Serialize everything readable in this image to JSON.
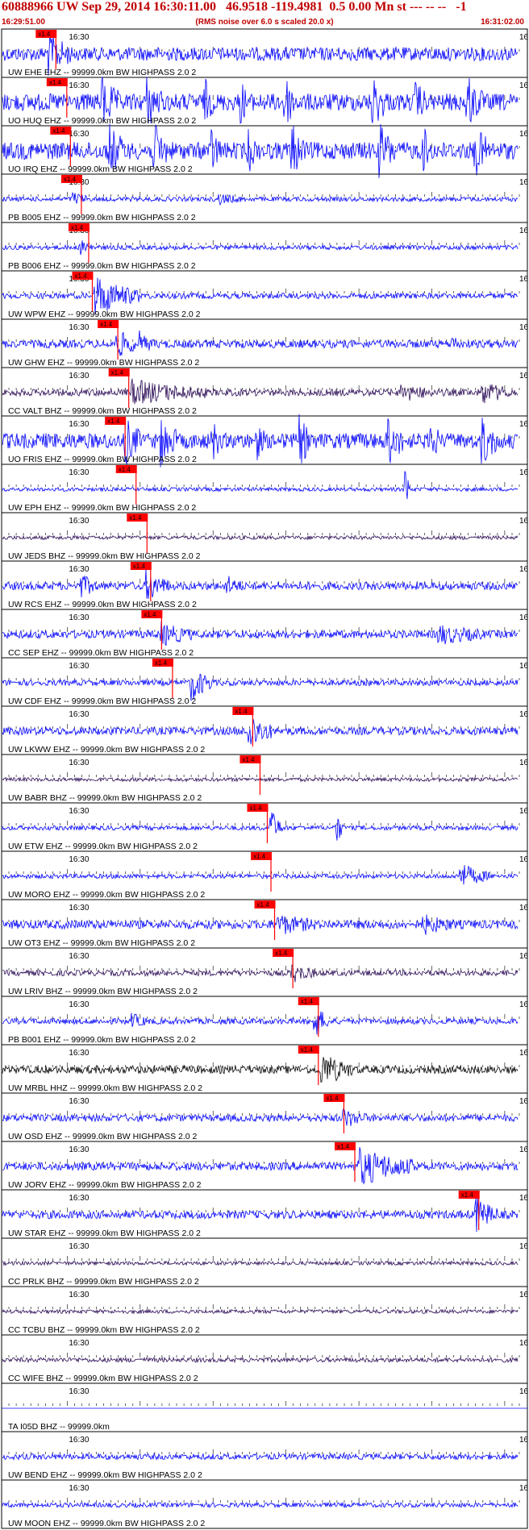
{
  "header": {
    "title": "60888966 UW Sep 29, 2014 16:30:11.00   46.9518 -119.4981  0.5 0.00 Mn st --- -- --   -1",
    "start_time": "16:29:51.00",
    "rms_note": "(RMS noise over 6.0 s scaled 20.0 x)",
    "end_time": "16:31:02.00"
  },
  "colors": {
    "red": "#ff0000",
    "blue": "#0000ff",
    "dark": "#2a0a55",
    "black": "#000000",
    "text": "#000000",
    "title": "#c00000"
  },
  "chart_data": {
    "type": "line",
    "title": "60888966 UW Sep 29, 2014 16:30:11.00   46.9518 -119.4981  0.5 0.00 Mn st --- -- --   -1",
    "x_start_seconds": 0,
    "x_end_seconds": 71,
    "minute_tick_label": "16:30",
    "minute_tick_seconds": 9,
    "right_edge_label": "16",
    "pick_label": "x1.4",
    "traces": [
      {
        "label": "UW EHE EHZ -- 99999.0km BW  HIGHPASS  2.0  2",
        "color": "blue",
        "pick": 6.0,
        "amp": 0.35,
        "burst": [
          [
            6.5,
            3.0,
            0.9
          ]
        ]
      },
      {
        "label": "UO HUQ EHZ -- 99999.0km BW  HIGHPASS  2.0  2",
        "color": "blue",
        "pick": 7.5,
        "amp": 0.45,
        "burst": [
          [
            14,
            2,
            1.0
          ],
          [
            20,
            2,
            1.0
          ],
          [
            28,
            1,
            0.8
          ],
          [
            33,
            1,
            0.7
          ],
          [
            39,
            1.5,
            1.0
          ],
          [
            51,
            2,
            1.0
          ],
          [
            57,
            1,
            0.8
          ],
          [
            64,
            2,
            1.0
          ]
        ]
      },
      {
        "label": "UO IRQ EHZ -- 99999.0km BW  HIGHPASS  2.0  2",
        "color": "blue",
        "pick": 8.0,
        "amp": 0.45,
        "burst": [
          [
            15,
            2,
            1.0
          ],
          [
            21,
            2,
            1.0
          ],
          [
            29,
            1,
            0.8
          ],
          [
            34,
            1,
            0.7
          ],
          [
            40,
            1.5,
            1.0
          ],
          [
            52,
            2,
            1.0
          ],
          [
            58,
            1,
            0.8
          ],
          [
            65,
            2,
            1.0
          ]
        ]
      },
      {
        "label": "PB B005 EHZ -- 99999.0km BW  HIGHPASS  2.0  2",
        "color": "blue",
        "pick": 9.5,
        "amp": 0.12,
        "burst": [
          [
            10,
            2,
            0.3
          ],
          [
            30,
            3,
            0.2
          ]
        ]
      },
      {
        "label": "PB B006 EHZ -- 99999.0km BW  HIGHPASS  2.0  2",
        "color": "blue",
        "pick": 10.5,
        "amp": 0.12,
        "burst": [
          [
            11,
            2,
            0.3
          ]
        ]
      },
      {
        "label": "UW WPW EHZ -- 99999.0km BW  HIGHPASS  2.0  2",
        "color": "blue",
        "pick": 11.0,
        "amp": 0.15,
        "burst": [
          [
            13,
            6,
            1.0
          ]
        ]
      },
      {
        "label": "UW GHW EHZ -- 99999.0km BW  HIGHPASS  2.0  2",
        "color": "blue",
        "pick": 14.5,
        "amp": 0.2,
        "burst": [
          [
            16,
            3,
            0.6
          ],
          [
            19,
            2,
            0.4
          ],
          [
            62,
            1,
            0.3
          ]
        ]
      },
      {
        "label": "CC VALT BHZ -- 99999.0km BW  HIGHPASS  2.0  2",
        "color": "dark",
        "pick": 16.0,
        "amp": 0.18,
        "burst": [
          [
            18,
            10,
            0.55
          ],
          [
            55,
            4,
            0.35
          ],
          [
            66,
            4,
            0.5
          ]
        ]
      },
      {
        "label": "UO FRIS EHZ -- 99999.0km BW  HIGHPASS  2.0  2",
        "color": "blue",
        "pick": 15.5,
        "amp": 0.4,
        "burst": [
          [
            17,
            2,
            1.0
          ],
          [
            22,
            2,
            1.0
          ],
          [
            29,
            1,
            0.8
          ],
          [
            35,
            1,
            0.7
          ],
          [
            41,
            1.5,
            1.0
          ],
          [
            53,
            2,
            1.0
          ],
          [
            59,
            1,
            0.8
          ],
          [
            66,
            2,
            1.0
          ]
        ]
      },
      {
        "label": "UW EPH EHZ -- 99999.0km BW  HIGHPASS  2.0  2",
        "color": "blue",
        "pick": 17.0,
        "amp": 0.1,
        "burst": [
          [
            55.5,
            0.5,
            1.2
          ]
        ]
      },
      {
        "label": "UW JEDS BHZ -- 99999.0km BW  HIGHPASS  2.0  2",
        "color": "dark",
        "pick": 18.5,
        "amp": 0.1,
        "burst": []
      },
      {
        "label": "UW RCS EHZ -- 99999.0km BW  HIGHPASS  2.0  2",
        "color": "blue",
        "pick": 19.0,
        "amp": 0.2,
        "burst": [
          [
            11,
            2,
            0.5
          ],
          [
            20,
            3,
            0.7
          ],
          [
            31,
            2,
            0.4
          ]
        ]
      },
      {
        "label": "CC SEP EHZ -- 99999.0km BW  HIGHPASS  2.0  2",
        "color": "blue",
        "pick": 20.5,
        "amp": 0.2,
        "burst": [
          [
            22,
            4,
            0.5
          ],
          [
            60,
            6,
            0.4
          ]
        ]
      },
      {
        "label": "UW CDF EHZ -- 99999.0km BW  HIGHPASS  2.0  2",
        "color": "blue",
        "pick": 22.0,
        "amp": 0.15,
        "burst": [
          [
            26,
            3,
            0.9
          ]
        ]
      },
      {
        "label": "UW LKWW EHZ -- 99999.0km BW  HIGHPASS  2.0  2",
        "color": "blue",
        "pick": 33.0,
        "amp": 0.2,
        "burst": [
          [
            34,
            3,
            0.9
          ]
        ]
      },
      {
        "label": "UW BABR BHZ -- 99999.0km BW  HIGHPASS  2.0  2",
        "color": "dark",
        "pick": 34.0,
        "amp": 0.1,
        "burst": []
      },
      {
        "label": "UW ETW EHZ -- 99999.0km BW  HIGHPASS  2.0  2",
        "color": "blue",
        "pick": 35.0,
        "amp": 0.12,
        "burst": [
          [
            37,
            1.5,
            0.9
          ],
          [
            46,
            0.8,
            0.9
          ]
        ]
      },
      {
        "label": "UW MORO EHZ -- 99999.0km BW  HIGHPASS  2.0  2",
        "color": "blue",
        "pick": 35.5,
        "amp": 0.12,
        "burst": [
          [
            63,
            4,
            0.6
          ]
        ]
      },
      {
        "label": "UW OT3 EHZ -- 99999.0km BW  HIGHPASS  2.0  2",
        "color": "blue",
        "pick": 36.0,
        "amp": 0.22,
        "burst": [
          [
            38,
            5,
            0.4
          ],
          [
            58,
            4,
            0.35
          ]
        ]
      },
      {
        "label": "UW LRIV BHZ -- 99999.0km BW  HIGHPASS  2.0  2",
        "color": "dark",
        "pick": 38.5,
        "amp": 0.15,
        "burst": [
          [
            40,
            3,
            0.4
          ]
        ]
      },
      {
        "label": "PB B001 EHZ -- 99999.0km BW  HIGHPASS  2.0  2",
        "color": "blue",
        "pick": 42.0,
        "amp": 0.15,
        "burst": [
          [
            18,
            2,
            0.3
          ],
          [
            43,
            2,
            0.8
          ]
        ]
      },
      {
        "label": "UW MRBL HHZ -- 99999.0km BW  HIGHPASS  2.0  2",
        "color": "black",
        "pick": 42.0,
        "amp": 0.2,
        "burst": [
          [
            44,
            4,
            0.8
          ]
        ]
      },
      {
        "label": "UW OSD EHZ -- 99999.0km BW  HIGHPASS  2.0  2",
        "color": "blue",
        "pick": 45.5,
        "amp": 0.18,
        "burst": [
          [
            47,
            3,
            0.4
          ]
        ]
      },
      {
        "label": "UW JORV EHZ -- 99999.0km BW  HIGHPASS  2.0  2",
        "color": "blue",
        "pick": 47.0,
        "amp": 0.2,
        "burst": [
          [
            49,
            8,
            0.9
          ]
        ]
      },
      {
        "label": "UW STAR EHZ -- 99999.0km BW  HIGHPASS  2.0  2",
        "color": "blue",
        "pick": 64.0,
        "amp": 0.2,
        "burst": [
          [
            65,
            3,
            0.9
          ]
        ]
      },
      {
        "label": "CC PRLK BHZ -- 99999.0km BW  HIGHPASS  2.0  2",
        "color": "dark",
        "pick": null,
        "amp": 0.1,
        "burst": []
      },
      {
        "label": "CC TCBU BHZ -- 99999.0km BW  HIGHPASS  2.0  2",
        "color": "dark",
        "pick": null,
        "amp": 0.1,
        "burst": []
      },
      {
        "label": "CC WIFE BHZ -- 99999.0km BW  HIGHPASS  2.0  2",
        "color": "dark",
        "pick": null,
        "amp": 0.12,
        "burst": []
      },
      {
        "label": "TA I05D BHZ -- 99999.0km",
        "color": "blue",
        "pick": null,
        "amp": 0.0,
        "burst": []
      },
      {
        "label": "UW BEND EHZ -- 99999.0km BW  HIGHPASS  2.0  2",
        "color": "blue",
        "pick": null,
        "amp": 0.15,
        "burst": []
      },
      {
        "label": "UW MOON EHZ -- 99999.0km BW  HIGHPASS  2.0  2",
        "color": "blue",
        "pick": null,
        "amp": 0.12,
        "burst": []
      }
    ]
  }
}
